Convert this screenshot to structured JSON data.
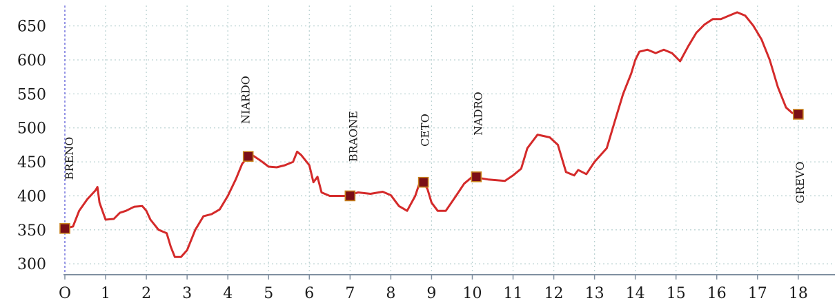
{
  "chart_data": {
    "type": "line",
    "title": "",
    "xlabel": "",
    "ylabel": "",
    "xlim": [
      0,
      18.9
    ],
    "ylim": [
      285,
      680
    ],
    "x_ticks": [
      0,
      1,
      2,
      3,
      4,
      5,
      6,
      7,
      8,
      9,
      10,
      11,
      12,
      13,
      14,
      15,
      16,
      17,
      18
    ],
    "x_tick_labels": [
      "O",
      "1",
      "2",
      "3",
      "4",
      "5",
      "6",
      "7",
      "8",
      "9",
      "10",
      "11",
      "12",
      "13",
      "14",
      "15",
      "16",
      "17",
      "18"
    ],
    "y_ticks": [
      300,
      350,
      400,
      450,
      500,
      550,
      600,
      650
    ],
    "grid": true,
    "colors": {
      "line": "#d42a2a",
      "marker": "#7a0e16",
      "marker_edge": "#c9831f",
      "grid": "#bcd3d3",
      "axis": "#7f8fa0",
      "start_line": "#7070dd"
    },
    "series": [
      {
        "values": [
          [
            0,
            352
          ],
          [
            0.2,
            355
          ],
          [
            0.35,
            378
          ],
          [
            0.55,
            395
          ],
          [
            0.75,
            408
          ],
          [
            0.8,
            413
          ],
          [
            0.85,
            390
          ],
          [
            1.0,
            365
          ],
          [
            1.2,
            366
          ],
          [
            1.35,
            375
          ],
          [
            1.5,
            378
          ],
          [
            1.7,
            384
          ],
          [
            1.9,
            385
          ],
          [
            2.0,
            378
          ],
          [
            2.1,
            365
          ],
          [
            2.3,
            350
          ],
          [
            2.5,
            345
          ],
          [
            2.6,
            325
          ],
          [
            2.7,
            310
          ],
          [
            2.85,
            310
          ],
          [
            3.0,
            320
          ],
          [
            3.2,
            350
          ],
          [
            3.4,
            370
          ],
          [
            3.6,
            373
          ],
          [
            3.8,
            380
          ],
          [
            4.0,
            400
          ],
          [
            4.2,
            425
          ],
          [
            4.35,
            447
          ],
          [
            4.5,
            458
          ],
          [
            4.6,
            460
          ],
          [
            4.8,
            452
          ],
          [
            5.0,
            443
          ],
          [
            5.2,
            442
          ],
          [
            5.4,
            445
          ],
          [
            5.6,
            450
          ],
          [
            5.7,
            465
          ],
          [
            5.8,
            460
          ],
          [
            6.0,
            445
          ],
          [
            6.1,
            420
          ],
          [
            6.2,
            428
          ],
          [
            6.3,
            405
          ],
          [
            6.5,
            400
          ],
          [
            6.7,
            400
          ],
          [
            6.9,
            400
          ],
          [
            7.2,
            405
          ],
          [
            7.5,
            403
          ],
          [
            7.8,
            406
          ],
          [
            8.0,
            401
          ],
          [
            8.2,
            385
          ],
          [
            8.4,
            378
          ],
          [
            8.6,
            400
          ],
          [
            8.7,
            418
          ],
          [
            8.8,
            420
          ],
          [
            8.9,
            410
          ],
          [
            9.0,
            390
          ],
          [
            9.15,
            378
          ],
          [
            9.35,
            378
          ],
          [
            9.6,
            400
          ],
          [
            9.8,
            418
          ],
          [
            10.0,
            428
          ],
          [
            10.2,
            426
          ],
          [
            10.4,
            424
          ],
          [
            10.6,
            423
          ],
          [
            10.8,
            422
          ],
          [
            11.0,
            430
          ],
          [
            11.2,
            440
          ],
          [
            11.35,
            470
          ],
          [
            11.6,
            490
          ],
          [
            11.9,
            486
          ],
          [
            12.1,
            475
          ],
          [
            12.3,
            435
          ],
          [
            12.5,
            430
          ],
          [
            12.6,
            438
          ],
          [
            12.8,
            432
          ],
          [
            13.0,
            450
          ],
          [
            13.3,
            470
          ],
          [
            13.5,
            510
          ],
          [
            13.7,
            550
          ],
          [
            13.9,
            580
          ],
          [
            14.0,
            600
          ],
          [
            14.1,
            612
          ],
          [
            14.3,
            615
          ],
          [
            14.5,
            610
          ],
          [
            14.7,
            615
          ],
          [
            14.9,
            610
          ],
          [
            15.1,
            598
          ],
          [
            15.3,
            620
          ],
          [
            15.5,
            640
          ],
          [
            15.7,
            652
          ],
          [
            15.9,
            660
          ],
          [
            16.1,
            660
          ],
          [
            16.3,
            665
          ],
          [
            16.5,
            670
          ],
          [
            16.7,
            665
          ],
          [
            16.9,
            650
          ],
          [
            17.1,
            630
          ],
          [
            17.3,
            600
          ],
          [
            17.5,
            560
          ],
          [
            17.7,
            530
          ],
          [
            17.85,
            522
          ],
          [
            18.0,
            520
          ]
        ]
      }
    ],
    "annotations": [
      {
        "label": "BRENO",
        "x": 0,
        "y": 352
      },
      {
        "label": "NIARDO",
        "x": 4.5,
        "y": 458
      },
      {
        "label": "BRAONE",
        "x": 7.0,
        "y": 400
      },
      {
        "label": "CETO",
        "x": 8.8,
        "y": 420
      },
      {
        "label": "NADRO",
        "x": 10.1,
        "y": 428
      },
      {
        "label": "GREVO",
        "x": 18.0,
        "y": 520
      }
    ]
  }
}
